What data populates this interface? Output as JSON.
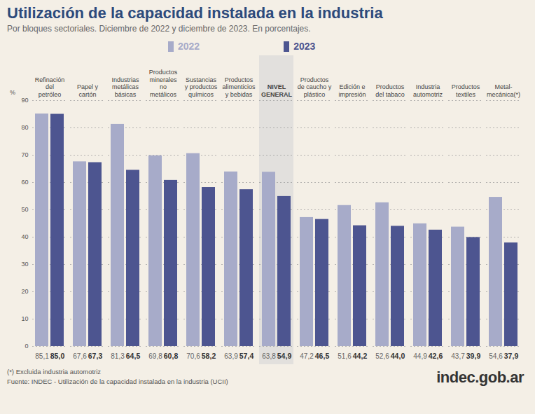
{
  "chart_data": {
    "type": "bar",
    "title": "Utilización de la capacidad instalada en la industria",
    "subtitle": "Por bloques sectoriales. Diciembre de 2022 y diciembre de 2023. En porcentajes.",
    "categories": [
      "Refinación del petróleo",
      "Papel y cartón",
      "Industrias metálicas básicas",
      "Productos minerales no metálicos",
      "Sustancias y productos químicos",
      "Productos alimenticios y bebidas",
      "NIVEL GENERAL",
      "Productos de caucho y plástico",
      "Edición e impresión",
      "Productos del tabaco",
      "Industria automotriz",
      "Productos textiles",
      "Metal-mecánica(*)"
    ],
    "series": [
      {
        "name": "2022",
        "color": "#a7abc9",
        "values": [
          85.1,
          67.6,
          81.3,
          69.8,
          70.6,
          63.9,
          63.8,
          47.2,
          51.6,
          52.6,
          44.9,
          43.7,
          54.6
        ],
        "value_labels": [
          "85,1",
          "67,6",
          "81,3",
          "69,8",
          "70,6",
          "63,9",
          "63,8",
          "47,2",
          "51,6",
          "52,6",
          "44,9",
          "43,7",
          "54,6"
        ]
      },
      {
        "name": "2023",
        "color": "#4d5590",
        "values": [
          85.0,
          67.3,
          64.5,
          60.8,
          58.2,
          57.4,
          54.9,
          46.5,
          44.2,
          44.0,
          42.6,
          39.9,
          37.9
        ],
        "value_labels": [
          "85,0",
          "67,3",
          "64,5",
          "60,8",
          "58,2",
          "57,4",
          "54,9",
          "46,5",
          "44,2",
          "44,0",
          "42,6",
          "39,9",
          "37,9"
        ]
      }
    ],
    "y_label": "%",
    "ylim": [
      0,
      90
    ],
    "yticks": [
      0,
      10,
      20,
      30,
      40,
      50,
      60,
      70,
      80,
      90
    ],
    "grid": true,
    "legend": "top",
    "data_labels": true,
    "footnote": "(*) Excluida industria automotriz",
    "source": "Fuente: INDEC - Utilización de la capacidad instalada en la industria (UCII)",
    "logo": "indec.gob.ar"
  }
}
